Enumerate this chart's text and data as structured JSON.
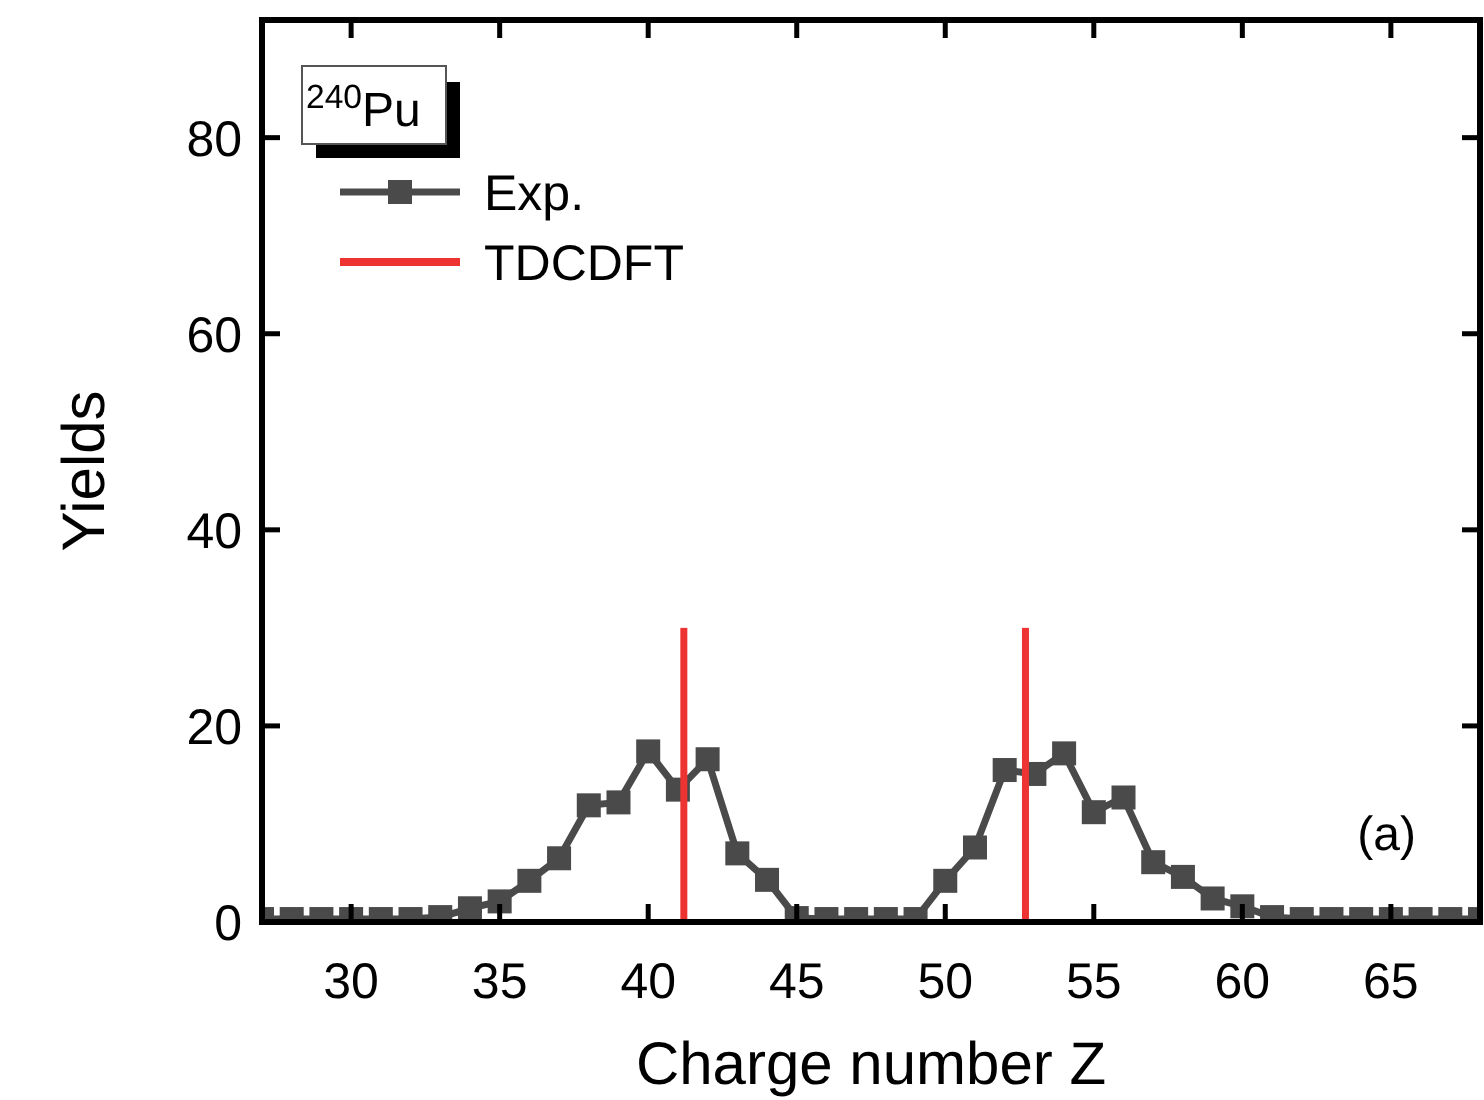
{
  "chart_data": {
    "type": "line",
    "xlabel": "Charge number Z",
    "ylabel": "Yields",
    "xlim": [
      27,
      68
    ],
    "ylim": [
      0,
      92
    ],
    "xticks": [
      30,
      35,
      40,
      45,
      50,
      55,
      60,
      65
    ],
    "yticks": [
      0,
      20,
      40,
      60,
      80
    ],
    "legend": "top left",
    "marker": "square",
    "line_style": "solid",
    "grid": false,
    "annotations": [
      "$^{240}$Pu",
      "(a)"
    ],
    "series": [
      {
        "name": "Exp.",
        "color": "#4a4a4a",
        "x": [
          27,
          28,
          29,
          30,
          31,
          32,
          33,
          34,
          35,
          36,
          37,
          38,
          39,
          40,
          41,
          42,
          43,
          44,
          45,
          46,
          47,
          48,
          49,
          50,
          51,
          52,
          53,
          54,
          55,
          56,
          57,
          58,
          59,
          60,
          61,
          62,
          63,
          64,
          65,
          66,
          67,
          68
        ],
        "values": [
          0.3,
          0.3,
          0.3,
          0.3,
          0.3,
          0.3,
          0.5,
          1.4,
          2.1,
          4.2,
          6.5,
          11.9,
          12.2,
          17.4,
          13.5,
          16.6,
          7.0,
          4.3,
          0.4,
          0.3,
          0.3,
          0.3,
          0.3,
          4.2,
          7.6,
          15.5,
          15.1,
          17.2,
          11.2,
          12.7,
          6.1,
          4.6,
          2.4,
          1.6,
          0.5,
          0.3,
          0.3,
          0.3,
          0.3,
          0.3,
          0.3,
          0.3
        ]
      },
      {
        "name": "TDCDFT",
        "type": "bar",
        "color": "#ee3333",
        "x": [
          41.2,
          52.7
        ],
        "values": [
          30,
          30
        ]
      }
    ]
  }
}
